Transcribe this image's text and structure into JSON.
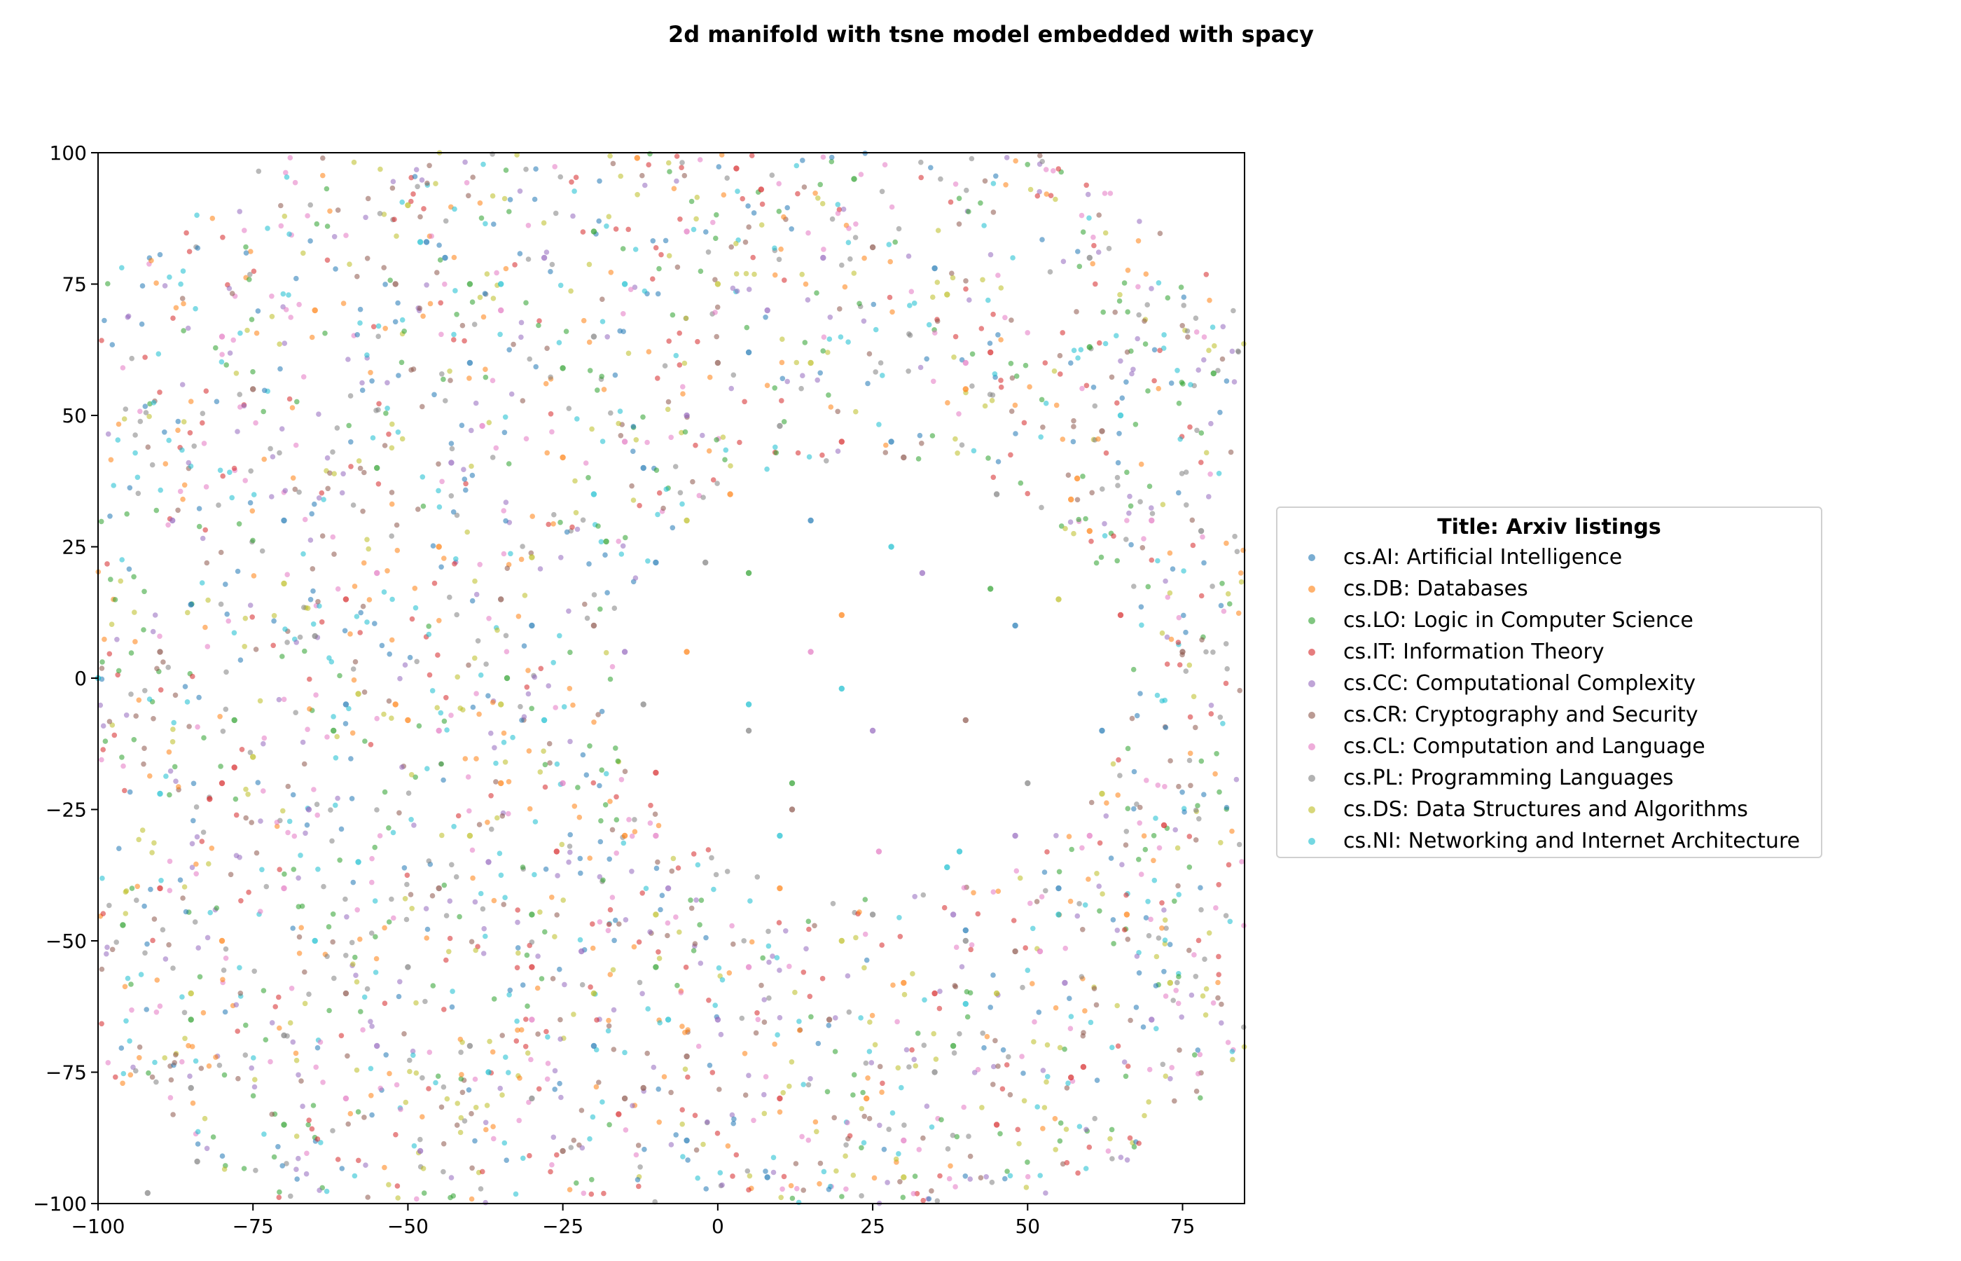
{
  "chart_data": {
    "type": "scatter",
    "title": "2d manifold with tsne model embedded with spacy",
    "xlabel": "",
    "ylabel": "",
    "xlim": [
      -100,
      85
    ],
    "ylim": [
      -100,
      100
    ],
    "xticks": [
      -100,
      -75,
      -50,
      -25,
      0,
      25,
      50,
      75
    ],
    "yticks": [
      -100,
      -75,
      -50,
      -25,
      0,
      25,
      50,
      75,
      100
    ],
    "grid": false,
    "legend_placement": "center-right outside",
    "legend_title": "Title: Arxiv listings",
    "series": [
      {
        "name": "cs.AI: Artificial Intelligence",
        "color": "#1f77b4",
        "points": [
          [
            -47,
            83
          ],
          [
            -44,
            80
          ],
          [
            -12,
            40
          ],
          [
            -10,
            22
          ],
          [
            5,
            62
          ],
          [
            28,
            45
          ],
          [
            -85,
            14
          ],
          [
            -60,
            -5
          ],
          [
            -30,
            10
          ],
          [
            40,
            -48
          ],
          [
            15,
            30
          ],
          [
            -20,
            -70
          ],
          [
            55,
            -40
          ],
          [
            -5,
            -88
          ],
          [
            62,
            -10
          ],
          [
            -70,
            30
          ],
          [
            35,
            78
          ],
          [
            -40,
            60
          ],
          [
            8,
            -95
          ],
          [
            48,
            10
          ]
        ]
      },
      {
        "name": "cs.DB: Databases",
        "color": "#ff7f0e",
        "points": [
          [
            58,
            38
          ],
          [
            57,
            34
          ],
          [
            -52,
            -5
          ],
          [
            -50,
            -8
          ],
          [
            24,
            -80
          ],
          [
            -5,
            5
          ],
          [
            -13,
            99
          ],
          [
            60,
            28
          ],
          [
            -25,
            42
          ],
          [
            10,
            -40
          ],
          [
            -65,
            70
          ],
          [
            40,
            55
          ],
          [
            -35,
            -20
          ],
          [
            20,
            12
          ],
          [
            -80,
            -50
          ],
          [
            30,
            -58
          ],
          [
            -15,
            -30
          ],
          [
            2,
            35
          ],
          [
            -45,
            25
          ],
          [
            66,
            -45
          ]
        ]
      },
      {
        "name": "cs.LO: Logic in Computer Science",
        "color": "#2ca02c",
        "points": [
          [
            -25,
            59
          ],
          [
            -85,
            -65
          ],
          [
            -18,
            26
          ],
          [
            -62,
            -10
          ],
          [
            -78,
            -8
          ],
          [
            44,
            17
          ],
          [
            -34,
            0
          ],
          [
            -40,
            75
          ],
          [
            22,
            95
          ],
          [
            -96,
            -47
          ],
          [
            -10,
            -55
          ],
          [
            60,
            63
          ],
          [
            -55,
            40
          ],
          [
            5,
            20
          ],
          [
            -70,
            -85
          ],
          [
            38,
            -70
          ],
          [
            -30,
            -45
          ],
          [
            80,
            58
          ],
          [
            -20,
            85
          ],
          [
            12,
            -20
          ]
        ]
      },
      {
        "name": "cs.IT: Information Theory",
        "color": "#d62728",
        "points": [
          [
            -80,
            -20
          ],
          [
            -78,
            -17
          ],
          [
            -82,
            -23
          ],
          [
            57,
            -76
          ],
          [
            59,
            -74
          ],
          [
            3,
            97
          ],
          [
            7,
            93
          ],
          [
            -16,
            -83
          ],
          [
            45,
            -85
          ],
          [
            65,
            12
          ],
          [
            -10,
            -18
          ],
          [
            -26,
            -33
          ],
          [
            35,
            -60
          ],
          [
            -30,
            -55
          ],
          [
            -60,
            15
          ],
          [
            10,
            -80
          ],
          [
            72,
            -28
          ],
          [
            -90,
            -40
          ],
          [
            20,
            45
          ],
          [
            44,
            62
          ]
        ]
      },
      {
        "name": "cs.CC: Computational Complexity",
        "color": "#9467bd",
        "points": [
          [
            -43,
            41
          ],
          [
            17,
            80
          ],
          [
            -22,
            -52
          ],
          [
            38,
            -45
          ],
          [
            -48,
            -90
          ],
          [
            56,
            -58
          ],
          [
            -66,
            -25
          ],
          [
            -5,
            50
          ],
          [
            25,
            -10
          ],
          [
            -37,
            -35
          ],
          [
            0,
            -65
          ],
          [
            -88,
            30
          ],
          [
            33,
            20
          ],
          [
            -15,
            5
          ],
          [
            48,
            -30
          ],
          [
            -55,
            -70
          ],
          [
            8,
            70
          ],
          [
            -28,
            80
          ],
          [
            70,
            -65
          ],
          [
            -8,
            -40
          ]
        ]
      },
      {
        "name": "cs.CR: Cryptography and Security",
        "color": "#8c564b",
        "points": [
          [
            -15,
            -80
          ],
          [
            -12,
            -78
          ],
          [
            30,
            42
          ],
          [
            -20,
            10
          ],
          [
            -60,
            -60
          ],
          [
            48,
            -52
          ],
          [
            -35,
            15
          ],
          [
            12,
            -25
          ],
          [
            -75,
            55
          ],
          [
            62,
            47
          ],
          [
            -5,
            -72
          ],
          [
            25,
            82
          ],
          [
            -45,
            -40
          ],
          [
            40,
            -8
          ],
          [
            -90,
            5
          ],
          [
            0,
            60
          ],
          [
            -25,
            -90
          ],
          [
            18,
            -65
          ],
          [
            -52,
            75
          ],
          [
            75,
            5
          ]
        ]
      },
      {
        "name": "cs.CL: Computation and Language",
        "color": "#e377c2",
        "points": [
          [
            -35,
            70
          ],
          [
            -10,
            -30
          ],
          [
            -55,
            20
          ],
          [
            26,
            -33
          ],
          [
            -30,
            -65
          ],
          [
            52,
            -52
          ],
          [
            -70,
            -40
          ],
          [
            -15,
            45
          ],
          [
            5,
            -55
          ],
          [
            40,
            60
          ],
          [
            -45,
            -10
          ],
          [
            15,
            5
          ],
          [
            -80,
            65
          ],
          [
            -25,
            -20
          ],
          [
            60,
            -30
          ],
          [
            -5,
            85
          ],
          [
            30,
            -88
          ],
          [
            -60,
            -80
          ],
          [
            70,
            30
          ],
          [
            -38,
            48
          ]
        ]
      },
      {
        "name": "cs.PL: Programming Languages",
        "color": "#7f7f7f",
        "points": [
          [
            -92,
            -98
          ],
          [
            -84,
            -92
          ],
          [
            -70,
            -68
          ],
          [
            40,
            -50
          ],
          [
            -40,
            -70
          ],
          [
            50,
            -20
          ],
          [
            -20,
            65
          ],
          [
            10,
            48
          ],
          [
            -65,
            8
          ],
          [
            35,
            -75
          ],
          [
            -2,
            22
          ],
          [
            60,
            80
          ],
          [
            -50,
            -55
          ],
          [
            25,
            -45
          ],
          [
            -85,
            -78
          ],
          [
            -12,
            -5
          ],
          [
            45,
            35
          ],
          [
            -30,
            -80
          ],
          [
            78,
            28
          ],
          [
            5,
            -10
          ]
        ]
      },
      {
        "name": "cs.DS: Data Structures and Algorithms",
        "color": "#bcbd22",
        "points": [
          [
            37,
            73
          ],
          [
            -58,
            -3
          ],
          [
            -30,
            23
          ],
          [
            73,
            -58
          ],
          [
            -10,
            -45
          ],
          [
            -70,
            18
          ],
          [
            15,
            60
          ],
          [
            -40,
            -30
          ],
          [
            55,
            15
          ],
          [
            -20,
            -60
          ],
          [
            -85,
            -60
          ],
          [
            30,
            -95
          ],
          [
            -5,
            30
          ],
          [
            62,
            -22
          ],
          [
            -50,
            90
          ],
          [
            20,
            -50
          ],
          [
            -75,
            -15
          ],
          [
            45,
            -60
          ],
          [
            0,
            75
          ],
          [
            -35,
            -5
          ]
        ]
      },
      {
        "name": "cs.NI: Networking and Internet Architecture",
        "color": "#17becf",
        "points": [
          [
            20,
            -2
          ],
          [
            -100,
            0
          ],
          [
            -48,
            83
          ],
          [
            -37,
            -75
          ],
          [
            39,
            -33
          ],
          [
            37,
            -36
          ],
          [
            -35,
            75
          ],
          [
            10,
            -30
          ],
          [
            -20,
            35
          ],
          [
            -8,
            -65
          ],
          [
            -58,
            -35
          ],
          [
            55,
            -45
          ],
          [
            -28,
            -8
          ],
          [
            28,
            25
          ],
          [
            -15,
            75
          ],
          [
            -65,
            -50
          ],
          [
            40,
            -62
          ],
          [
            5,
            -5
          ],
          [
            -90,
            -22
          ],
          [
            65,
            50
          ]
        ]
      }
    ]
  }
}
